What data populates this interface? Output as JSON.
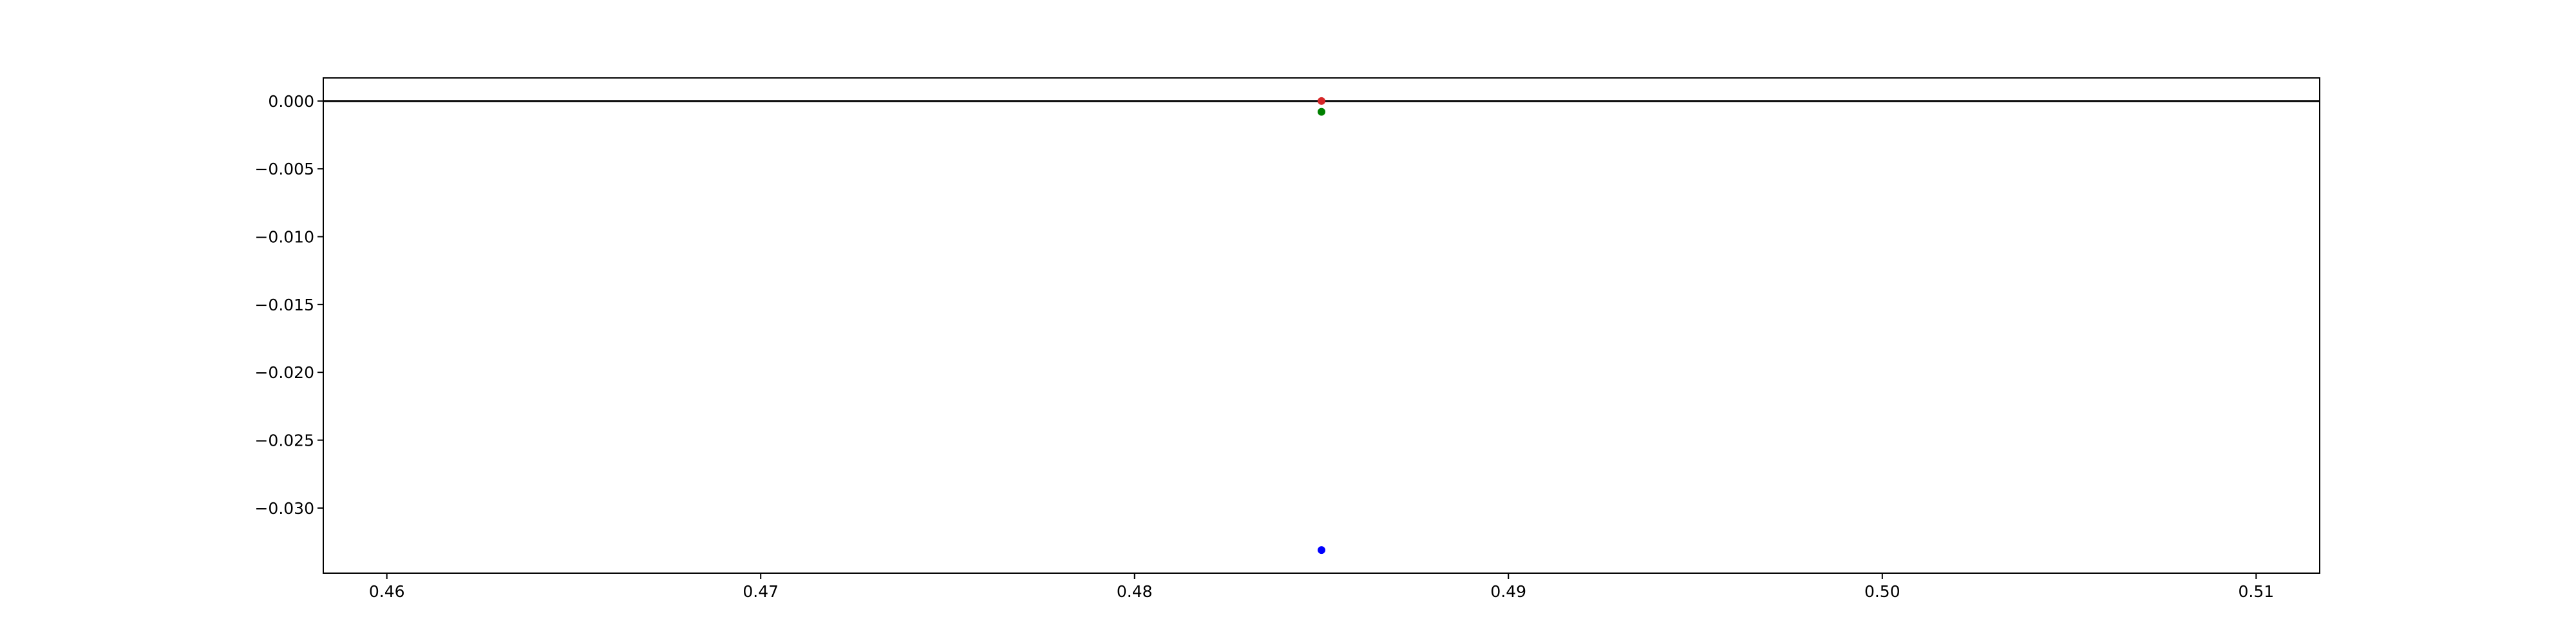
{
  "chart_data": {
    "type": "scatter",
    "title": "",
    "xlabel": "",
    "ylabel": "",
    "xlim": [
      0.4583,
      0.5117
    ],
    "ylim": [
      -0.0348,
      0.0017
    ],
    "x_ticks": [
      0.46,
      0.47,
      0.48,
      0.49,
      0.5,
      0.51
    ],
    "x_tick_labels": [
      "0.46",
      "0.47",
      "0.48",
      "0.49",
      "0.50",
      "0.51"
    ],
    "y_ticks": [
      0.0,
      -0.005,
      -0.01,
      -0.015,
      -0.02,
      -0.025,
      -0.03
    ],
    "y_tick_labels": [
      "0.000",
      "−0.005",
      "−0.010",
      "−0.015",
      "−0.020",
      "−0.025",
      "−0.030"
    ],
    "grid": false,
    "legend": "none",
    "reference_line": {
      "y": 0.0,
      "color": "#000000"
    },
    "series": [
      {
        "x": [
          0.485
        ],
        "y": [
          0.0
        ],
        "color": "#d62728"
      },
      {
        "x": [
          0.485
        ],
        "y": [
          -0.0008
        ],
        "color": "#008000"
      },
      {
        "x": [
          0.485
        ],
        "y": [
          -0.0331
        ],
        "color": "#0000ff"
      }
    ]
  }
}
